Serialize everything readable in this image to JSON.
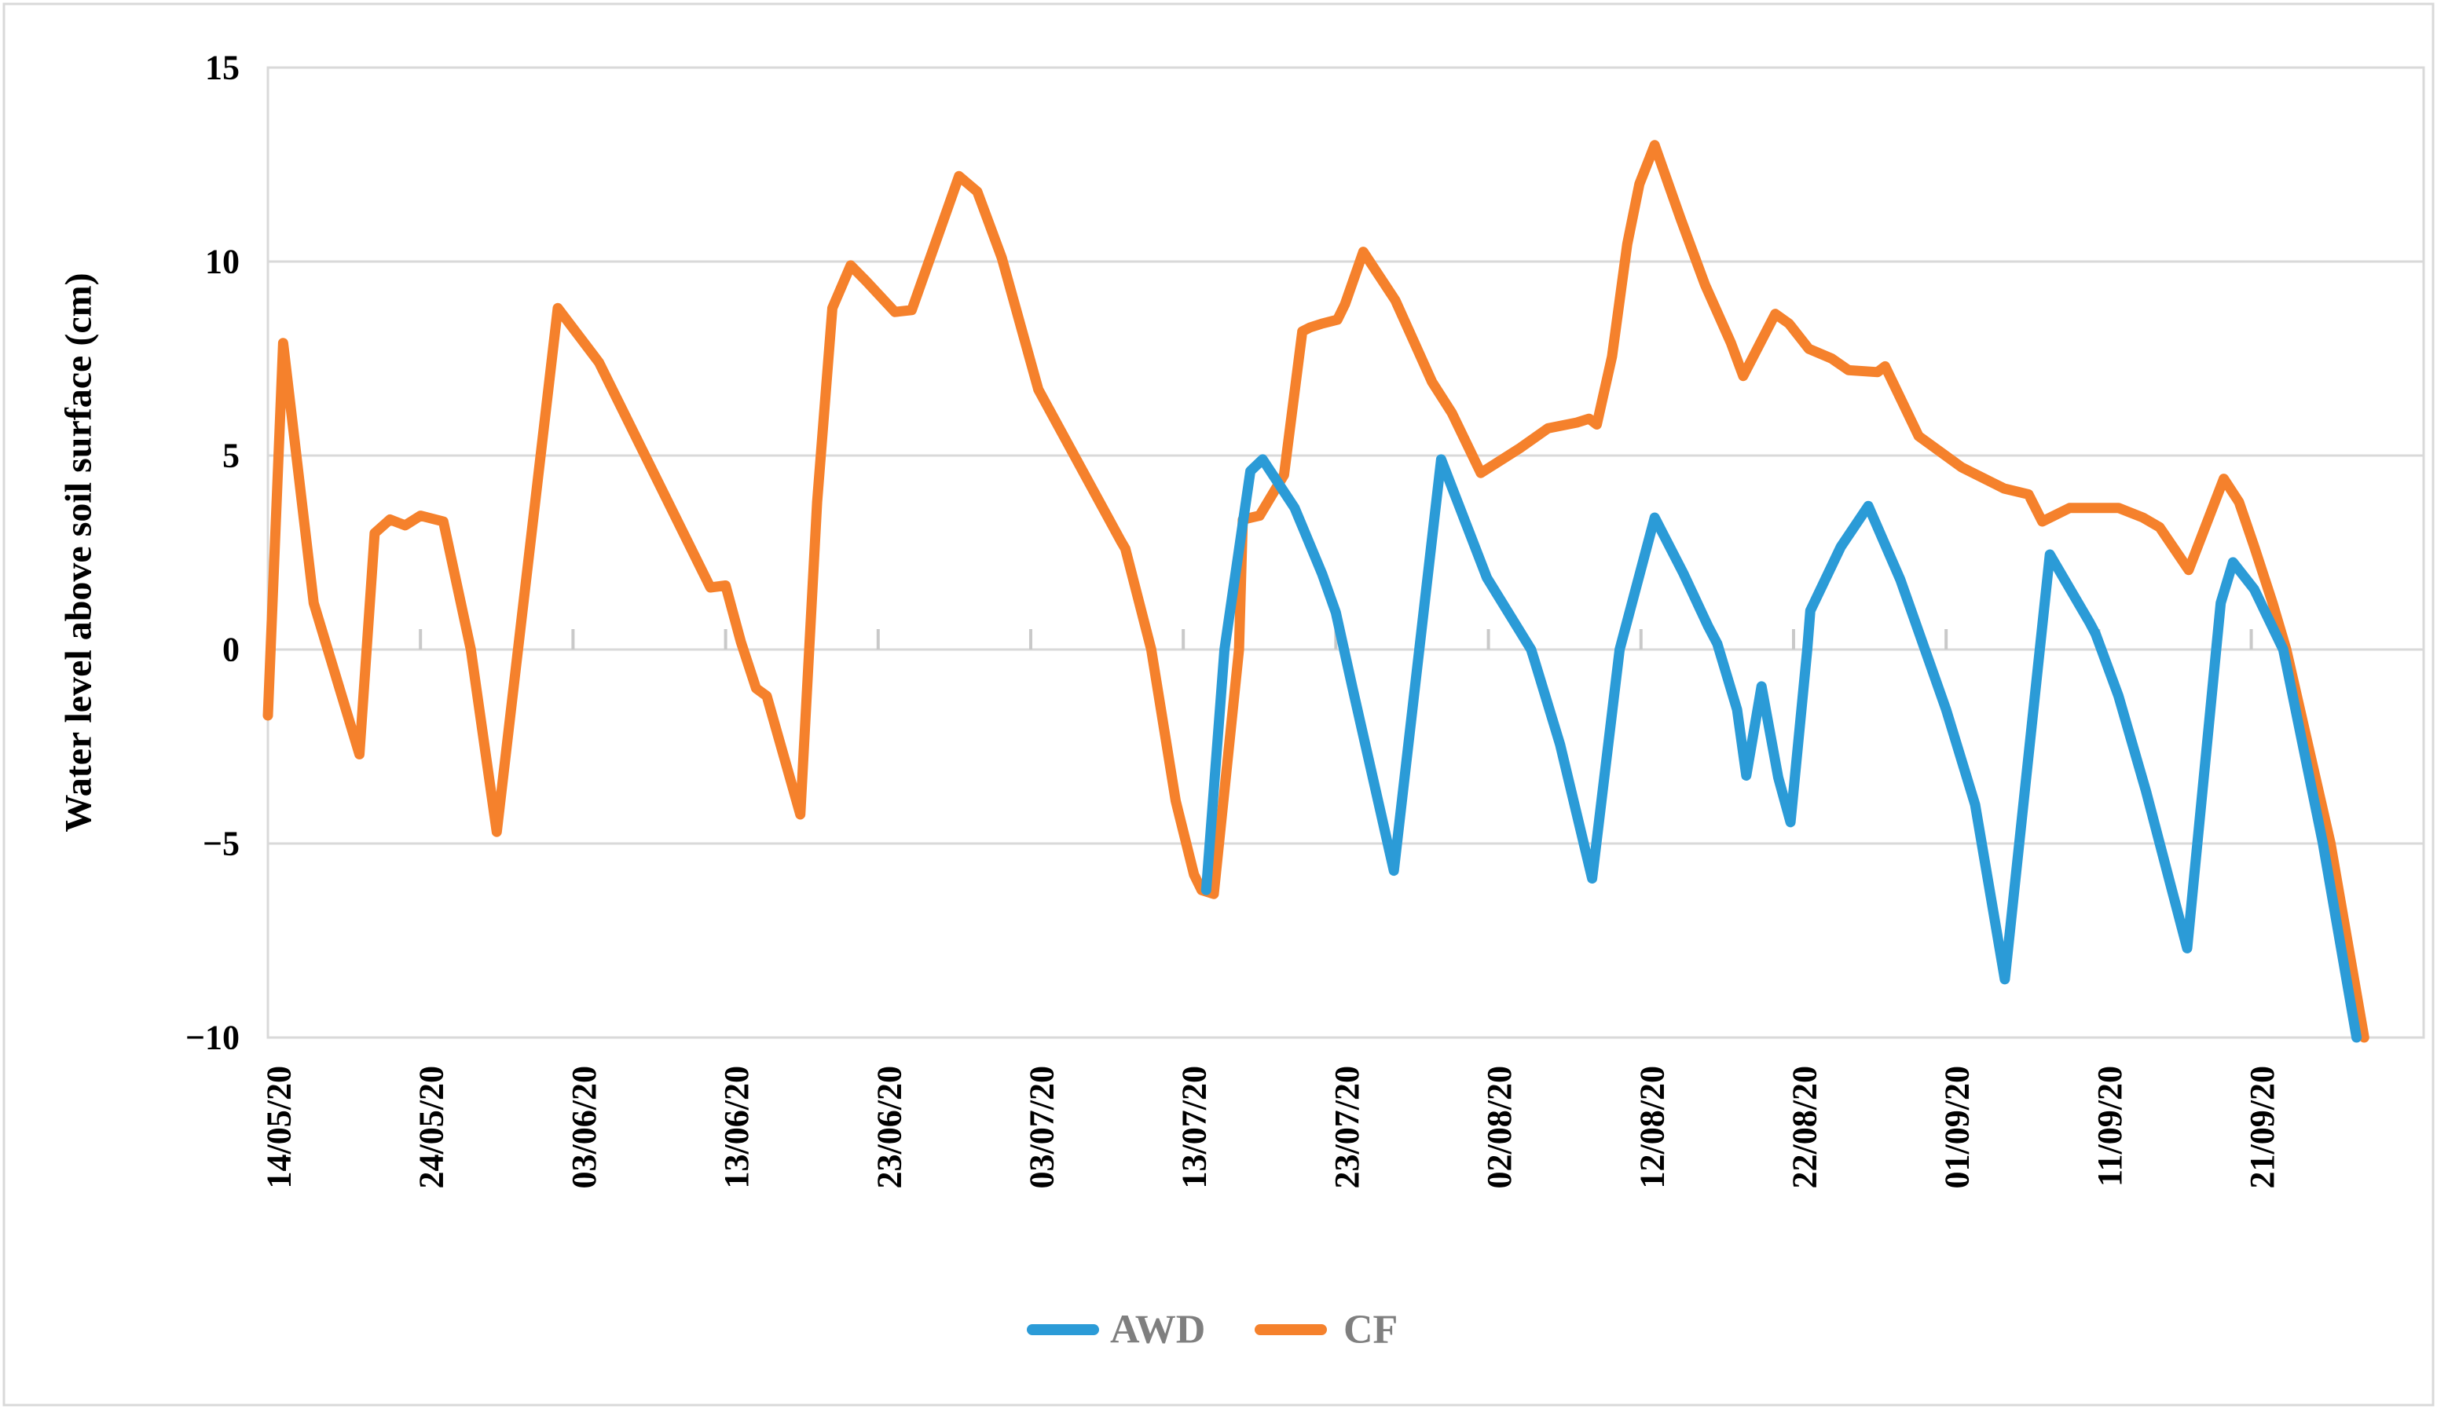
{
  "figure": {
    "type_label": "line-chart",
    "background": "#ffffff",
    "border_color": "#d9d9d9"
  },
  "y_axis": {
    "title": "Water level above soil surface (cm)",
    "min": -10,
    "max": 15,
    "ticks": [
      {
        "value": 15,
        "label": "15"
      },
      {
        "value": 10,
        "label": "10"
      },
      {
        "value": 5,
        "label": "5"
      },
      {
        "value": 0,
        "label": "0"
      },
      {
        "value": -5,
        "label": "−5"
      },
      {
        "value": -10,
        "label": "−10"
      }
    ]
  },
  "x_axis": {
    "unit": "days since 14/05/20",
    "day_max": 141.3,
    "ticks": [
      {
        "day": 0,
        "label": "14/05/20"
      },
      {
        "day": 10,
        "label": "24/05/20"
      },
      {
        "day": 20,
        "label": "03/06/20"
      },
      {
        "day": 30,
        "label": "13/06/20"
      },
      {
        "day": 40,
        "label": "23/06/20"
      },
      {
        "day": 50,
        "label": "03/07/20"
      },
      {
        "day": 60,
        "label": "13/07/20"
      },
      {
        "day": 70,
        "label": "23/07/20"
      },
      {
        "day": 80,
        "label": "02/08/20"
      },
      {
        "day": 90,
        "label": "12/08/20"
      },
      {
        "day": 100,
        "label": "22/08/20"
      },
      {
        "day": 110,
        "label": "01/09/20"
      },
      {
        "day": 120,
        "label": "11/09/20"
      },
      {
        "day": 130,
        "label": "21/09/20"
      }
    ]
  },
  "legend": {
    "items": [
      {
        "label": "AWD",
        "color": "#2b9bd7"
      },
      {
        "label": "CF",
        "color": "#f5812c"
      }
    ],
    "text_color": "#7f7f7f"
  },
  "chart_data": {
    "type": "line",
    "title": "",
    "xlabel": "",
    "ylabel": "Water level above soil surface (cm)",
    "ylim": [
      -10,
      15
    ],
    "grid": "horizontal",
    "legend_position": "bottom-center",
    "x_unit": "days since 14/05/2020 (daily water level records)",
    "series": [
      {
        "name": "CF",
        "color": "#f5812c",
        "points": [
          [
            0,
            -1.7
          ],
          [
            1,
            7.9
          ],
          [
            3,
            1.2
          ],
          [
            6,
            -2.7
          ],
          [
            7,
            3.0
          ],
          [
            8,
            3.35
          ],
          [
            9,
            3.2
          ],
          [
            10,
            3.45
          ],
          [
            11.5,
            3.3
          ],
          [
            13.3,
            0
          ],
          [
            15,
            -4.7
          ],
          [
            19,
            8.8
          ],
          [
            21.7,
            7.4
          ],
          [
            29,
            1.6
          ],
          [
            30,
            1.65
          ],
          [
            31,
            0.2
          ],
          [
            32,
            -1.0
          ],
          [
            32.7,
            -1.2
          ],
          [
            34.9,
            -4.25
          ],
          [
            36,
            3.8
          ],
          [
            37,
            8.8
          ],
          [
            38.2,
            9.9
          ],
          [
            39.2,
            9.5
          ],
          [
            41.1,
            8.7
          ],
          [
            42.2,
            8.75
          ],
          [
            45.3,
            12.2
          ],
          [
            46.5,
            11.8
          ],
          [
            48.1,
            10.1
          ],
          [
            50.5,
            6.7
          ],
          [
            55.9,
            2.8
          ],
          [
            56.2,
            2.6
          ],
          [
            57.9,
            0
          ],
          [
            59.5,
            -3.9
          ],
          [
            60.7,
            -5.8
          ],
          [
            61.2,
            -6.2
          ],
          [
            62,
            -6.3
          ],
          [
            63.65,
            0
          ],
          [
            63.9,
            3.35
          ],
          [
            65,
            3.45
          ],
          [
            66.6,
            4.5
          ],
          [
            67.8,
            8.2
          ],
          [
            68.3,
            8.3
          ],
          [
            69.1,
            8.4
          ],
          [
            70.1,
            8.5
          ],
          [
            70.6,
            8.9
          ],
          [
            71.8,
            10.25
          ],
          [
            73.9,
            9.0
          ],
          [
            76.3,
            6.9
          ],
          [
            77.6,
            6.1
          ],
          [
            79.5,
            4.55
          ],
          [
            82.1,
            5.2
          ],
          [
            83.9,
            5.7
          ],
          [
            85.8,
            5.85
          ],
          [
            86.6,
            5.95
          ],
          [
            87.1,
            5.8
          ],
          [
            88.1,
            7.55
          ],
          [
            89.1,
            10.45
          ],
          [
            89.9,
            12.0
          ],
          [
            90.9,
            13.0
          ],
          [
            92.6,
            11.1
          ],
          [
            94.2,
            9.4
          ],
          [
            95.9,
            7.9
          ],
          [
            96.7,
            7.05
          ],
          [
            98.8,
            8.65
          ],
          [
            99.7,
            8.4
          ],
          [
            101,
            7.75
          ],
          [
            102.5,
            7.5
          ],
          [
            103.6,
            7.2
          ],
          [
            105.5,
            7.15
          ],
          [
            106,
            7.3
          ],
          [
            108.2,
            5.5
          ],
          [
            111,
            4.7
          ],
          [
            113.8,
            4.15
          ],
          [
            115.4,
            4.0
          ],
          [
            116.3,
            3.3
          ],
          [
            118.1,
            3.65
          ],
          [
            121.3,
            3.65
          ],
          [
            122.9,
            3.4
          ],
          [
            124,
            3.15
          ],
          [
            125.9,
            2.05
          ],
          [
            128.2,
            4.4
          ],
          [
            129.2,
            3.8
          ],
          [
            130.2,
            2.65
          ],
          [
            131.4,
            1.2
          ],
          [
            132.3,
            0
          ],
          [
            135.2,
            -5
          ],
          [
            137.4,
            -10
          ]
        ]
      },
      {
        "name": "AWD",
        "color": "#2b9bd7",
        "points": [
          [
            61.5,
            -6.2
          ],
          [
            62.7,
            0
          ],
          [
            64.4,
            4.6
          ],
          [
            65.2,
            4.9
          ],
          [
            67.3,
            3.65
          ],
          [
            69.1,
            1.95
          ],
          [
            70,
            0.95
          ],
          [
            71.1,
            -1.0
          ],
          [
            73.8,
            -5.7
          ],
          [
            76.9,
            4.9
          ],
          [
            79.9,
            1.85
          ],
          [
            82.8,
            0
          ],
          [
            83,
            -0.25
          ],
          [
            84.7,
            -2.45
          ],
          [
            86.8,
            -5.9
          ],
          [
            88.6,
            0
          ],
          [
            90.9,
            3.4
          ],
          [
            92.8,
            1.95
          ],
          [
            94.4,
            0.6
          ],
          [
            95,
            0.15
          ],
          [
            96.3,
            -1.55
          ],
          [
            96.9,
            -3.25
          ],
          [
            97.9,
            -0.95
          ],
          [
            99,
            -3.3
          ],
          [
            99.8,
            -4.45
          ],
          [
            100.9,
            0
          ],
          [
            101.1,
            1.0
          ],
          [
            103.1,
            2.65
          ],
          [
            104.9,
            3.7
          ],
          [
            107,
            1.8
          ],
          [
            110,
            -1.55
          ],
          [
            111.9,
            -4.0
          ],
          [
            113.85,
            -8.5
          ],
          [
            116.8,
            2.45
          ],
          [
            119.4,
            0.7
          ],
          [
            119.8,
            0.4
          ],
          [
            121.3,
            -1.2
          ],
          [
            123.1,
            -3.65
          ],
          [
            125.8,
            -7.7
          ],
          [
            128,
            1.2
          ],
          [
            128.8,
            2.25
          ],
          [
            130.2,
            1.55
          ],
          [
            132.1,
            0
          ],
          [
            134.7,
            -5
          ],
          [
            136.9,
            -10
          ]
        ]
      }
    ]
  }
}
